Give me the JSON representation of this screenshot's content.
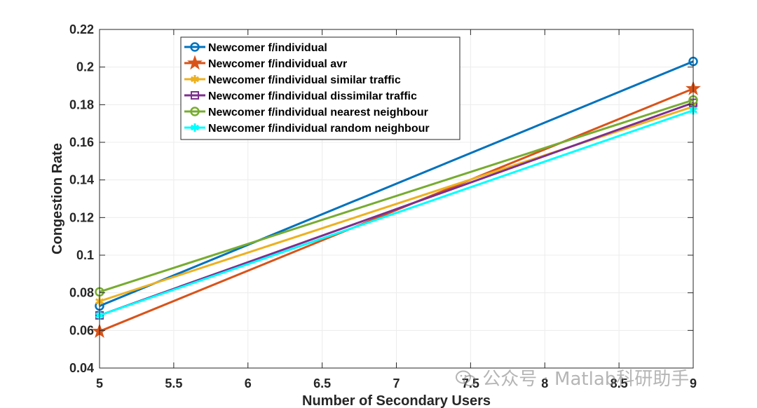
{
  "chart_data": {
    "type": "line",
    "title": "",
    "xlabel": "Number of Secondary Users",
    "ylabel": "Congestion Rate",
    "xlim": [
      5,
      9
    ],
    "ylim": [
      0.04,
      0.22
    ],
    "x": [
      5,
      9
    ],
    "xticks": [
      "5",
      "5.5",
      "6",
      "6.5",
      "7",
      "7.5",
      "8",
      "8.5",
      "9"
    ],
    "yticks": [
      "0.04",
      "0.06",
      "0.08",
      "0.1",
      "0.12",
      "0.14",
      "0.16",
      "0.18",
      "0.2",
      "0.22"
    ],
    "grid": true,
    "legend_position": "top-left",
    "series": [
      {
        "name": "Newcomer f/individual",
        "values": [
          0.073,
          0.203
        ],
        "color": "#0072BD",
        "marker": "circle"
      },
      {
        "name": "Newcomer f/individual avr",
        "values": [
          0.0595,
          0.1885
        ],
        "color": "#D95319",
        "marker": "star"
      },
      {
        "name": "Newcomer f/individual similar traffic",
        "values": [
          0.0755,
          0.179
        ],
        "color": "#EDB120",
        "marker": "asterisk"
      },
      {
        "name": "Newcomer f/individual dissimilar traffic",
        "values": [
          0.068,
          0.181
        ],
        "color": "#7E2F8E",
        "marker": "square"
      },
      {
        "name": "Newcomer f/individual nearest neighbour",
        "values": [
          0.0805,
          0.1825
        ],
        "color": "#77AC30",
        "marker": "circle"
      },
      {
        "name": "Newcomer f/individual random neighbour",
        "values": [
          0.068,
          0.177
        ],
        "color": "#00FFFF",
        "marker": "asterisk"
      }
    ]
  },
  "watermark": {
    "text": "公众号 · Matlab科研助手",
    "icon": "wechat-icon"
  }
}
